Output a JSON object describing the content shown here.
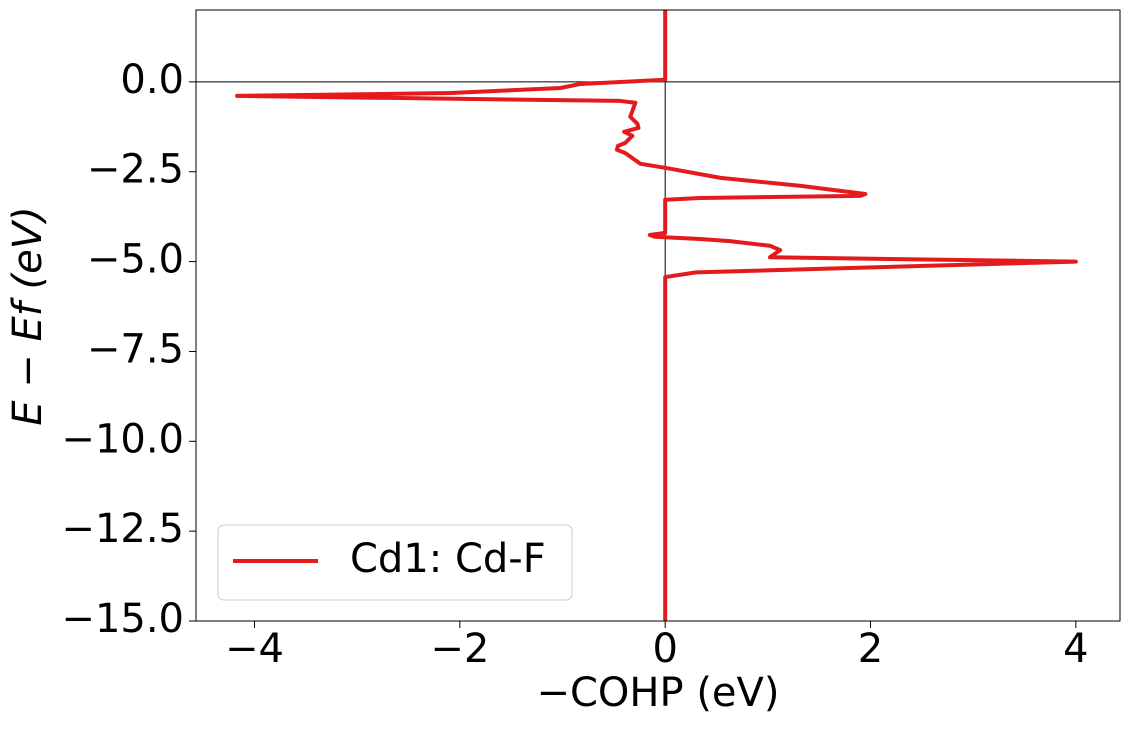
{
  "chart_data": {
    "type": "line",
    "xlabel": "−COHP (eV)",
    "ylabel": "E − Ef (eV)",
    "xlim": [
      -4.57,
      4.43
    ],
    "ylim": [
      -15,
      2
    ],
    "xticks": [
      {
        "value": -4,
        "label": "−4"
      },
      {
        "value": -2,
        "label": "−2"
      },
      0,
      2,
      4
    ],
    "yticks": [
      {
        "value": -15,
        "label": "−15.0"
      },
      {
        "value": -12.5,
        "label": "−12.5"
      },
      {
        "value": -10,
        "label": "−10.0"
      },
      {
        "value": -7.5,
        "label": "−7.5"
      },
      {
        "value": -5,
        "label": "−5.0"
      },
      {
        "value": -2.5,
        "label": "−2.5"
      },
      {
        "value": 0,
        "label": "0.0"
      }
    ],
    "legend": "lower left",
    "series": [
      {
        "name": "Cd1: Cd-F",
        "color": "#e41a1c",
        "x": [
          0,
          0,
          0.3,
          4.0,
          1.02,
          1.12,
          1.02,
          0.63,
          0.34,
          -0.1,
          -0.15,
          0,
          0,
          0.34,
          1.9,
          1.95,
          1.31,
          0.54,
          0,
          -0.24,
          -0.39,
          -0.47,
          -0.46,
          -0.39,
          -0.32,
          -0.4,
          -0.26,
          -0.27,
          -0.34,
          -0.29,
          -0.44,
          -2.58,
          -4.17,
          -2.09,
          -1.02,
          -0.83,
          0,
          0
        ],
        "values": [
          -15,
          -5.43,
          -5.3,
          -5.0,
          -4.88,
          -4.68,
          -4.56,
          -4.43,
          -4.37,
          -4.31,
          -4.26,
          -4.2,
          -3.28,
          -3.23,
          -3.17,
          -3.12,
          -2.89,
          -2.67,
          -2.39,
          -2.28,
          -1.98,
          -1.89,
          -1.78,
          -1.7,
          -1.5,
          -1.39,
          -1.28,
          -1.17,
          -0.97,
          -0.58,
          -0.53,
          -0.45,
          -0.39,
          -0.31,
          -0.17,
          -0.06,
          0.06,
          2
        ]
      }
    ]
  }
}
